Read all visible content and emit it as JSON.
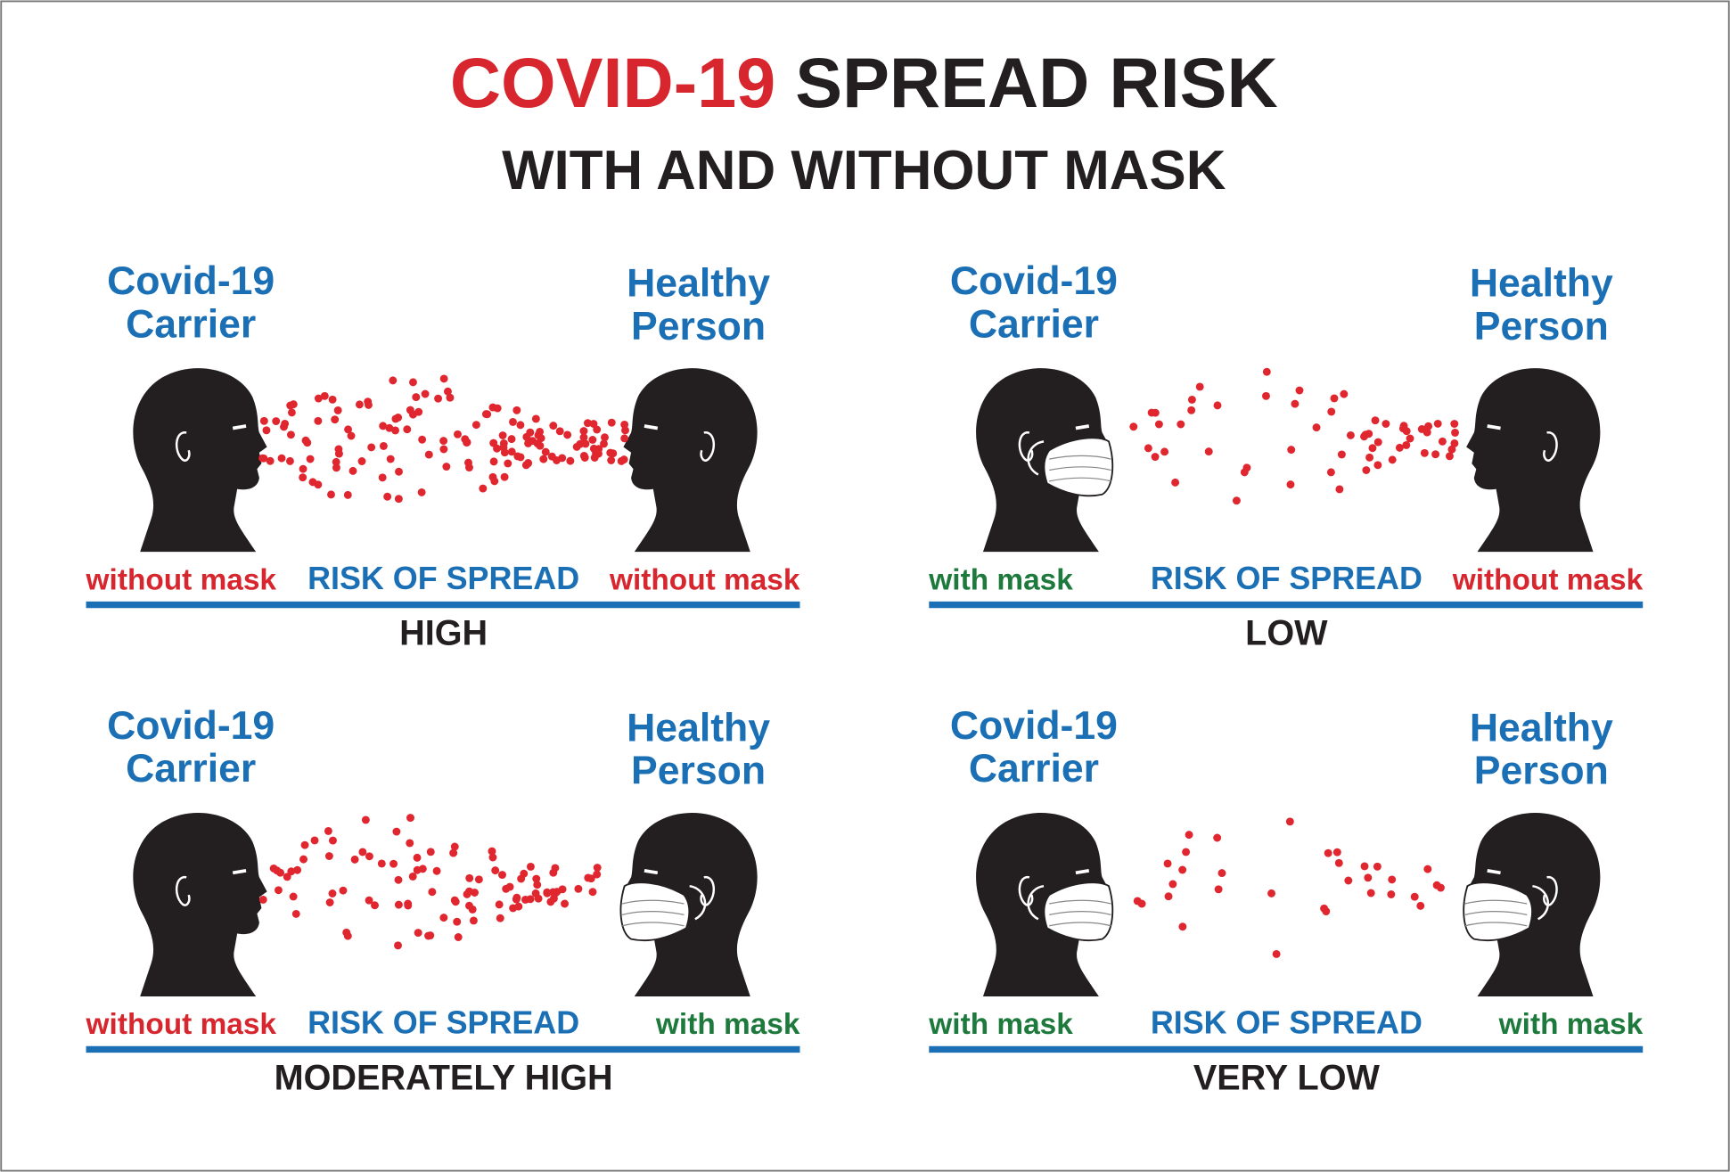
{
  "title": {
    "highlight": "COVID-19",
    "rest": "SPREAD RISK"
  },
  "subtitle": "WITH AND WITHOUT MASK",
  "label_color": "#1a6fb5",
  "panels": [
    {
      "carrier": [
        "Covid-19",
        "Carrier"
      ],
      "healthy": [
        "Healthy",
        "Person"
      ],
      "left_status": "without mask",
      "left_color": "#d7262e",
      "middle": "RISK OF SPREAD",
      "right_status": "without mask",
      "right_color": "#d7262e",
      "level": "HIGH"
    },
    {
      "carrier": [
        "Covid-19",
        "Carrier"
      ],
      "healthy": [
        "Healthy",
        "Person"
      ],
      "left_status": "with mask",
      "left_color": "#1d7a3c",
      "middle": "RISK OF SPREAD",
      "right_status": "without mask",
      "right_color": "#d7262e",
      "level": "LOW"
    },
    {
      "carrier": [
        "Covid-19",
        "Carrier"
      ],
      "healthy": [
        "Healthy",
        "Person"
      ],
      "left_status": "without mask",
      "left_color": "#d7262e",
      "middle": "RISK OF SPREAD",
      "right_status": "with mask",
      "right_color": "#1d7a3c",
      "level": "MODERATELY HIGH"
    },
    {
      "carrier": [
        "Covid-19",
        "Carrier"
      ],
      "healthy": [
        "Healthy",
        "Person"
      ],
      "left_status": "with mask",
      "left_color": "#1d7a3c",
      "middle": "RISK OF SPREAD",
      "right_status": "with mask",
      "right_color": "#1d7a3c",
      "level": "VERY LOW"
    }
  ]
}
